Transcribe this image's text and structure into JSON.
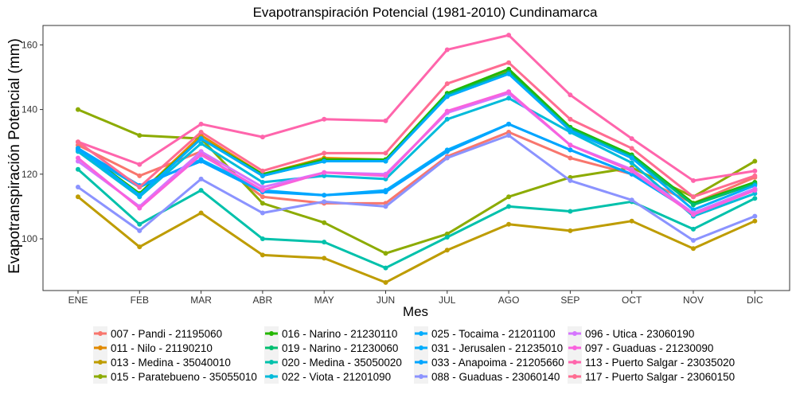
{
  "chart_data": {
    "type": "line",
    "title": "Evapotranspiración Potencial (1981-2010)  Cundinamarca",
    "xlabel": "Mes",
    "ylabel": "Evapotranspiración Potencial  (mm)",
    "categories": [
      "ENE",
      "FEB",
      "MAR",
      "ABR",
      "MAY",
      "JUN",
      "JUL",
      "AGO",
      "SEP",
      "OCT",
      "NOV",
      "DIC"
    ],
    "ylim": [
      84,
      166
    ],
    "yticks": [
      100,
      120,
      140,
      160
    ],
    "grid": false,
    "legend": "bottom",
    "series": [
      {
        "name": "007 - Pandi - 21195060",
        "color": "#F8766D",
        "values": [
          129,
          119.5,
          127,
          113,
          111,
          111,
          125.5,
          133,
          125,
          120,
          111,
          119
        ]
      },
      {
        "name": "011 - Nilo - 21190210",
        "color": "#E18A00",
        "values": [
          128,
          114,
          132,
          120,
          125,
          124.5,
          145,
          152,
          134,
          125,
          111,
          117
        ]
      },
      {
        "name": "013 - Medina - 35040010",
        "color": "#BE9C00",
        "values": [
          113,
          97.5,
          108,
          95,
          94,
          86.5,
          96.5,
          104.5,
          102.5,
          105.5,
          97,
          105.5
        ]
      },
      {
        "name": "015 - Paratebueno - 35055010",
        "color": "#8CAB00",
        "values": [
          140,
          132,
          131,
          111,
          105,
          95.5,
          101.5,
          113,
          119,
          122,
          113,
          124
        ]
      },
      {
        "name": "016 - Narino - 21230110",
        "color": "#24B700",
        "values": [
          128,
          114,
          131,
          120,
          124.5,
          124.5,
          145,
          152.5,
          134.5,
          126,
          111,
          117.5
        ]
      },
      {
        "name": "019 - Narino - 21230060",
        "color": "#00BE70",
        "values": [
          128,
          113.5,
          131,
          119.5,
          124,
          124,
          144.5,
          151.5,
          134,
          125.5,
          110.5,
          117
        ]
      },
      {
        "name": "020 - Medina - 35050020",
        "color": "#00C1AB",
        "values": [
          121.5,
          104.5,
          115,
          100,
          99,
          91,
          100.5,
          110,
          108.5,
          111.5,
          103,
          112.5
        ]
      },
      {
        "name": "022 - Viota - 21201090",
        "color": "#00BBDA",
        "values": [
          127,
          113,
          129.5,
          117.5,
          119.5,
          118.5,
          137,
          143.5,
          133,
          123.5,
          107,
          114
        ]
      },
      {
        "name": "025 - Tocaima - 21201100",
        "color": "#00ACFC",
        "values": [
          128,
          113.5,
          131,
          119.5,
          124,
          124,
          144,
          151,
          133.5,
          125,
          109,
          116.5
        ]
      },
      {
        "name": "031 - Jerusalen - 21235010",
        "color": "#00ACFC",
        "values": [
          127.5,
          116,
          124.5,
          115,
          113.5,
          115,
          127.5,
          135.5,
          127.5,
          120,
          108,
          115.5
        ]
      },
      {
        "name": "033 - Anapoima - 21205660",
        "color": "#00A5FF",
        "values": [
          128,
          116.5,
          124,
          114.5,
          113.5,
          114.5,
          127,
          135.5,
          127.5,
          120,
          108,
          115
        ]
      },
      {
        "name": "088 - Guaduas - 23060140",
        "color": "#8B93FF",
        "values": [
          116,
          102.5,
          118.5,
          108,
          111.5,
          110,
          125,
          132,
          118,
          112,
          99.5,
          107
        ]
      },
      {
        "name": "096 - Utica - 23060190",
        "color": "#D575FE",
        "values": [
          124,
          110,
          127,
          116,
          120.5,
          120,
          139,
          145,
          129,
          121.5,
          108,
          115.5
        ]
      },
      {
        "name": "097 - Guaduas - 21230090",
        "color": "#F962DD",
        "values": [
          125,
          109.5,
          126,
          115,
          120.5,
          119.5,
          139.5,
          145.5,
          129,
          121,
          107.5,
          115
        ]
      },
      {
        "name": "113 - Puerto Salgar - 23035020",
        "color": "#FF65AC",
        "values": [
          130,
          123,
          135.5,
          131.5,
          137,
          136.5,
          158.5,
          163,
          144.5,
          131,
          118,
          121
        ]
      },
      {
        "name": "117 - Puerto Salgar - 23060150",
        "color": "#FF6C91",
        "values": [
          130,
          116,
          133,
          121,
          126.5,
          126.5,
          148,
          154.5,
          137,
          128,
          113,
          119.5
        ]
      }
    ]
  }
}
